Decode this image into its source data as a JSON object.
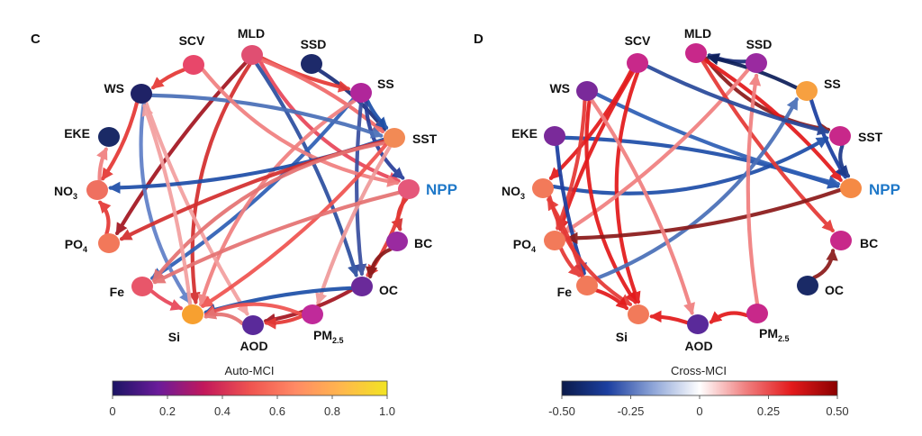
{
  "panels": [
    {
      "id": "C",
      "letter": "C",
      "colorbar": {
        "title": "Auto-MCI",
        "ticks": [
          "0",
          "0.2",
          "0.4",
          "0.6",
          "0.8",
          "1.0"
        ],
        "colors": [
          "#1b1464",
          "#6a1b9a",
          "#c2185b",
          "#ef5350",
          "#ff8a65",
          "#ffb74d",
          "#f2e422"
        ]
      },
      "nodes": [
        {
          "key": "SCV",
          "label": "SCV",
          "color": "#e8476a"
        },
        {
          "key": "MLD",
          "label": "MLD",
          "color": "#e04f72"
        },
        {
          "key": "SSD",
          "label": "SSD",
          "color": "#1d2a6a"
        },
        {
          "key": "WS",
          "label": "WS",
          "color": "#1f2266"
        },
        {
          "key": "SS",
          "label": "SS",
          "color": "#b0269a"
        },
        {
          "key": "EKE",
          "label": "EKE",
          "color": "#1a2a66"
        },
        {
          "key": "SST",
          "label": "SST",
          "color": "#f28a55"
        },
        {
          "key": "NO3",
          "label": "NO",
          "sub": "3",
          "color": "#ef7060"
        },
        {
          "key": "NPP",
          "label": "NPP",
          "color": "#e5577a"
        },
        {
          "key": "PO4",
          "label": "PO",
          "sub": "4",
          "color": "#f2785a"
        },
        {
          "key": "BC",
          "label": "BC",
          "color": "#9a2aa0"
        },
        {
          "key": "Fe",
          "label": "Fe",
          "color": "#e8566a"
        },
        {
          "key": "OC",
          "label": "OC",
          "color": "#6a2a9a"
        },
        {
          "key": "Si",
          "label": "Si",
          "color": "#f7a030"
        },
        {
          "key": "AOD",
          "label": "AOD",
          "color": "#5a2a9a"
        },
        {
          "key": "PM25",
          "label": "PM",
          "sub": "2.5",
          "color": "#c02a9a"
        }
      ],
      "edges": [
        {
          "from": "SSD",
          "to": "SST",
          "color": "#1b2f7a"
        },
        {
          "from": "MLD",
          "to": "SS",
          "color": "#e53935"
        },
        {
          "from": "MLD",
          "to": "NPP",
          "color": "#e8475a"
        },
        {
          "from": "MLD",
          "to": "SST",
          "color": "#f06a6a"
        },
        {
          "from": "MLD",
          "to": "PO4",
          "color": "#a31621"
        },
        {
          "from": "MLD",
          "to": "Si",
          "color": "#d32f2f"
        },
        {
          "from": "MLD",
          "to": "OC",
          "color": "#2d4fa0"
        },
        {
          "from": "SS",
          "to": "SST",
          "color": "#1e50a8"
        },
        {
          "from": "SS",
          "to": "NPP",
          "color": "#283f9a"
        },
        {
          "from": "SS",
          "to": "Fe",
          "color": "#2f5fb5"
        },
        {
          "from": "SS",
          "to": "OC",
          "color": "#3a4fa0"
        },
        {
          "from": "SS",
          "to": "Si",
          "color": "#f08080"
        },
        {
          "from": "WS",
          "to": "SST",
          "color": "#4a6fb8"
        },
        {
          "from": "WS",
          "to": "AOD",
          "color": "#f3a0a0"
        },
        {
          "from": "WS",
          "to": "Si",
          "color": "#6080c8"
        },
        {
          "from": "WS",
          "to": "NO3",
          "color": "#e53935"
        },
        {
          "from": "SCV",
          "to": "WS",
          "color": "#e53935"
        },
        {
          "from": "SCV",
          "to": "NPP",
          "color": "#f08080"
        },
        {
          "from": "SST",
          "to": "NO3",
          "color": "#1f4ea8"
        },
        {
          "from": "SST",
          "to": "PO4",
          "color": "#d32f2f"
        },
        {
          "from": "SST",
          "to": "Fe",
          "color": "#e57373"
        },
        {
          "from": "SST",
          "to": "Si",
          "color": "#ef5350"
        },
        {
          "from": "SST",
          "to": "PM25",
          "color": "#ef9a9a"
        },
        {
          "from": "NPP",
          "to": "BC",
          "color": "#d32f2f"
        },
        {
          "from": "NPP",
          "to": "OC",
          "color": "#e53935"
        },
        {
          "from": "NPP",
          "to": "Fe",
          "color": "#e57373"
        },
        {
          "from": "BC",
          "to": "OC",
          "color": "#8b1a1a"
        },
        {
          "from": "OC",
          "to": "AOD",
          "color": "#a31621"
        },
        {
          "from": "OC",
          "to": "Si",
          "color": "#1e50a8"
        },
        {
          "from": "PM25",
          "to": "Si",
          "color": "#ef5350"
        },
        {
          "from": "PM25",
          "to": "AOD",
          "color": "#e53935"
        },
        {
          "from": "Fe",
          "to": "Si",
          "color": "#e8475a"
        },
        {
          "from": "PO4",
          "to": "NO3",
          "color": "#e53935"
        },
        {
          "from": "NO3",
          "to": "EKE",
          "color": "#f08080"
        },
        {
          "from": "Si",
          "to": "WS",
          "color": "#f3a0a0"
        },
        {
          "from": "AOD",
          "to": "Si",
          "color": "#e57373"
        }
      ]
    },
    {
      "id": "D",
      "letter": "D",
      "colorbar": {
        "title": "Cross-MCI",
        "ticks": [
          "-0.50",
          "-0.25",
          "0",
          "0.25",
          "0.50"
        ],
        "colors": [
          "#0b1a4a",
          "#1c3fa0",
          "#8fa6d8",
          "#ffffff",
          "#f08080",
          "#e31a1c",
          "#8b0000"
        ]
      },
      "nodes": [
        {
          "key": "SCV",
          "label": "SCV",
          "color": "#c8288a"
        },
        {
          "key": "MLD",
          "label": "MLD",
          "color": "#c8288a"
        },
        {
          "key": "SSD",
          "label": "SSD",
          "color": "#9a2aa0"
        },
        {
          "key": "WS",
          "label": "WS",
          "color": "#7a2a9a"
        },
        {
          "key": "SS",
          "label": "SS",
          "color": "#f7a040"
        },
        {
          "key": "EKE",
          "label": "EKE",
          "color": "#7a2a9a"
        },
        {
          "key": "SST",
          "label": "SST",
          "color": "#c8288a"
        },
        {
          "key": "NO3",
          "label": "NO",
          "sub": "3",
          "color": "#f27a5a"
        },
        {
          "key": "NPP",
          "label": "NPP",
          "color": "#f58a45"
        },
        {
          "key": "PO4",
          "label": "PO",
          "sub": "4",
          "color": "#f27a5a"
        },
        {
          "key": "BC",
          "label": "BC",
          "color": "#c8288a"
        },
        {
          "key": "Fe",
          "label": "Fe",
          "color": "#f27a5a"
        },
        {
          "key": "OC",
          "label": "OC",
          "color": "#1a2a66"
        },
        {
          "key": "Si",
          "label": "Si",
          "color": "#f27a5a"
        },
        {
          "key": "AOD",
          "label": "AOD",
          "color": "#5a2a9a"
        },
        {
          "key": "PM25",
          "label": "PM",
          "sub": "2.5",
          "color": "#c8288a"
        }
      ],
      "edges": [
        {
          "from": "SSD",
          "to": "MLD",
          "color": "#1b2f7a"
        },
        {
          "from": "SS",
          "to": "MLD",
          "color": "#0d1f5a"
        },
        {
          "from": "MLD",
          "to": "SST",
          "color": "#8b1a1a"
        },
        {
          "from": "MLD",
          "to": "NPP",
          "color": "#e31a1c"
        },
        {
          "from": "SS",
          "to": "NPP",
          "color": "#1c3fa0"
        },
        {
          "from": "SST",
          "to": "NPP",
          "color": "#1e3a8a"
        },
        {
          "from": "EKE",
          "to": "NPP",
          "color": "#1f4ea8"
        },
        {
          "from": "WS",
          "to": "NPP",
          "color": "#2f5fb5"
        },
        {
          "from": "NO3",
          "to": "SST",
          "color": "#1f4ea8"
        },
        {
          "from": "SCV",
          "to": "NO3",
          "color": "#e31a1c"
        },
        {
          "from": "SCV",
          "to": "PO4",
          "color": "#e31a1c"
        },
        {
          "from": "SCV",
          "to": "Si",
          "color": "#e31a1c"
        },
        {
          "from": "SSD",
          "to": "PO4",
          "color": "#f08080"
        },
        {
          "from": "MLD",
          "to": "BC",
          "color": "#e53935"
        },
        {
          "from": "WS",
          "to": "Si",
          "color": "#e31a1c"
        },
        {
          "from": "WS",
          "to": "PO4",
          "color": "#e53935"
        },
        {
          "from": "EKE",
          "to": "Fe",
          "color": "#1c3fa0"
        },
        {
          "from": "Fe",
          "to": "SS",
          "color": "#4a6fb8"
        },
        {
          "from": "NPP",
          "to": "PO4",
          "color": "#8b1a1a"
        },
        {
          "from": "PO4",
          "to": "Fe",
          "color": "#e53935"
        },
        {
          "from": "NO3",
          "to": "Si",
          "color": "#e53935"
        },
        {
          "from": "Fe",
          "to": "Si",
          "color": "#e31a1c"
        },
        {
          "from": "AOD",
          "to": "Si",
          "color": "#e31a1c"
        },
        {
          "from": "OC",
          "to": "BC",
          "color": "#8b1a1a"
        },
        {
          "from": "PM25",
          "to": "SSD",
          "color": "#f08080"
        },
        {
          "from": "Fe",
          "to": "NO3",
          "color": "#e53935"
        },
        {
          "from": "PM25",
          "to": "AOD",
          "color": "#e31a1c"
        },
        {
          "from": "WS",
          "to": "AOD",
          "color": "#f08080"
        },
        {
          "from": "SCV",
          "to": "SST",
          "color": "#2a4a9a"
        }
      ]
    }
  ]
}
